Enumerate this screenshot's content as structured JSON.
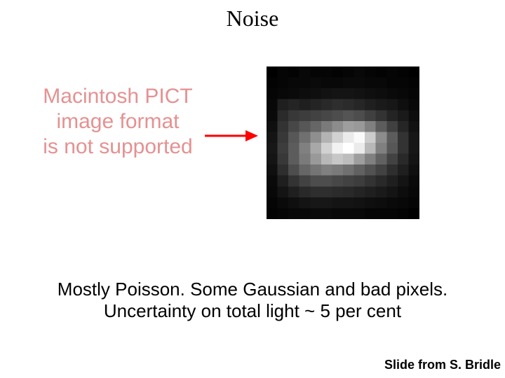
{
  "title": "Noise",
  "pict_error": {
    "lines": [
      "Macintosh PICT",
      "image format",
      "is not supported"
    ],
    "color": "#e59191",
    "fontsize": 30
  },
  "arrow": {
    "color": "#ff0000",
    "shaft_width": 3,
    "head_width": 16,
    "head_len": 18
  },
  "noise_image": {
    "type": "heatmap",
    "grid_size": 14,
    "colorscale": "grayscale",
    "min_color": "#000000",
    "max_color": "#ffffff",
    "background_color": "#000000",
    "values": [
      [
        0.0,
        0.02,
        0.01,
        0.03,
        0.02,
        0.02,
        0.01,
        0.02,
        0.03,
        0.02,
        0.01,
        0.02,
        0.01,
        0.0
      ],
      [
        0.01,
        0.02,
        0.03,
        0.03,
        0.04,
        0.03,
        0.03,
        0.04,
        0.04,
        0.03,
        0.03,
        0.02,
        0.02,
        0.01
      ],
      [
        0.02,
        0.03,
        0.04,
        0.05,
        0.06,
        0.07,
        0.08,
        0.08,
        0.07,
        0.06,
        0.05,
        0.04,
        0.03,
        0.02
      ],
      [
        0.03,
        0.12,
        0.14,
        0.12,
        0.14,
        0.16,
        0.18,
        0.17,
        0.15,
        0.12,
        0.1,
        0.09,
        0.06,
        0.03
      ],
      [
        0.04,
        0.17,
        0.22,
        0.24,
        0.26,
        0.28,
        0.3,
        0.33,
        0.3,
        0.25,
        0.2,
        0.14,
        0.1,
        0.05
      ],
      [
        0.06,
        0.2,
        0.28,
        0.34,
        0.4,
        0.48,
        0.55,
        0.62,
        0.6,
        0.5,
        0.36,
        0.25,
        0.15,
        0.07
      ],
      [
        0.08,
        0.22,
        0.34,
        0.44,
        0.56,
        0.7,
        0.82,
        0.92,
        0.98,
        0.8,
        0.55,
        0.36,
        0.2,
        0.09
      ],
      [
        0.09,
        0.24,
        0.36,
        0.5,
        0.66,
        0.82,
        0.95,
        1.0,
        0.92,
        0.72,
        0.5,
        0.34,
        0.2,
        0.09
      ],
      [
        0.08,
        0.22,
        0.36,
        0.48,
        0.6,
        0.72,
        0.78,
        0.74,
        0.62,
        0.5,
        0.38,
        0.26,
        0.16,
        0.08
      ],
      [
        0.06,
        0.18,
        0.3,
        0.4,
        0.46,
        0.5,
        0.48,
        0.44,
        0.38,
        0.32,
        0.26,
        0.18,
        0.12,
        0.06
      ],
      [
        0.04,
        0.12,
        0.2,
        0.26,
        0.3,
        0.3,
        0.28,
        0.26,
        0.24,
        0.2,
        0.16,
        0.12,
        0.08,
        0.04
      ],
      [
        0.03,
        0.08,
        0.12,
        0.16,
        0.18,
        0.18,
        0.17,
        0.16,
        0.14,
        0.12,
        0.1,
        0.08,
        0.05,
        0.03
      ],
      [
        0.02,
        0.04,
        0.06,
        0.08,
        0.09,
        0.09,
        0.08,
        0.08,
        0.07,
        0.06,
        0.05,
        0.04,
        0.03,
        0.02
      ],
      [
        0.01,
        0.02,
        0.03,
        0.03,
        0.04,
        0.04,
        0.03,
        0.03,
        0.03,
        0.02,
        0.02,
        0.02,
        0.01,
        0.0
      ]
    ]
  },
  "caption": {
    "line1": "Mostly Poisson. Some Gaussian and bad pixels.",
    "line2": "Uncertainty on total light ~ 5 per cent",
    "fontsize": 26,
    "color": "#000000"
  },
  "attribution": "Slide from S. Bridle"
}
